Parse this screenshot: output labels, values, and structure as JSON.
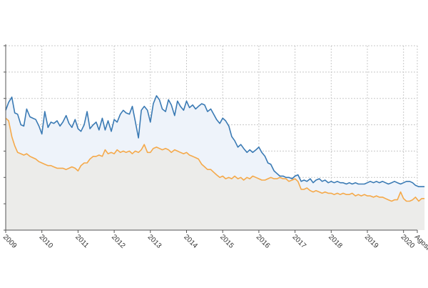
{
  "chart_data": {
    "type": "area",
    "x_start_year": 2009,
    "x_ticks": [
      "2009",
      "2010",
      "2011",
      "2012",
      "2013",
      "2014",
      "2015",
      "2016",
      "2017",
      "2018",
      "2019",
      "2020",
      "Agosto"
    ],
    "ylim": [
      0,
      7
    ],
    "grid": true,
    "series": [
      {
        "color": "#3a7ab4",
        "fill": "#eef3fa",
        "points": [
          [
            2009.0,
            4.55
          ],
          [
            2009.08,
            4.85
          ],
          [
            2009.17,
            5.05
          ],
          [
            2009.25,
            4.45
          ],
          [
            2009.33,
            4.4
          ],
          [
            2009.42,
            4.0
          ],
          [
            2009.5,
            3.95
          ],
          [
            2009.58,
            4.6
          ],
          [
            2009.67,
            4.3
          ],
          [
            2009.75,
            4.25
          ],
          [
            2009.83,
            4.2
          ],
          [
            2009.92,
            3.95
          ],
          [
            2010.0,
            3.65
          ],
          [
            2010.08,
            4.5
          ],
          [
            2010.17,
            3.9
          ],
          [
            2010.25,
            4.1
          ],
          [
            2010.33,
            4.05
          ],
          [
            2010.42,
            4.15
          ],
          [
            2010.5,
            3.95
          ],
          [
            2010.58,
            4.1
          ],
          [
            2010.67,
            4.35
          ],
          [
            2010.75,
            4.05
          ],
          [
            2010.83,
            3.9
          ],
          [
            2010.92,
            4.2
          ],
          [
            2011.0,
            3.85
          ],
          [
            2011.08,
            3.75
          ],
          [
            2011.17,
            4.0
          ],
          [
            2011.25,
            4.5
          ],
          [
            2011.33,
            3.85
          ],
          [
            2011.42,
            4.0
          ],
          [
            2011.5,
            4.1
          ],
          [
            2011.58,
            3.8
          ],
          [
            2011.67,
            4.25
          ],
          [
            2011.75,
            3.8
          ],
          [
            2011.83,
            4.15
          ],
          [
            2011.92,
            3.75
          ],
          [
            2012.0,
            4.2
          ],
          [
            2012.08,
            4.1
          ],
          [
            2012.17,
            4.4
          ],
          [
            2012.25,
            4.55
          ],
          [
            2012.33,
            4.45
          ],
          [
            2012.42,
            4.4
          ],
          [
            2012.5,
            4.7
          ],
          [
            2012.58,
            4.15
          ],
          [
            2012.67,
            3.5
          ],
          [
            2012.75,
            4.55
          ],
          [
            2012.83,
            4.7
          ],
          [
            2012.92,
            4.55
          ],
          [
            2013.0,
            4.1
          ],
          [
            2013.08,
            4.8
          ],
          [
            2013.17,
            5.1
          ],
          [
            2013.25,
            4.95
          ],
          [
            2013.33,
            4.6
          ],
          [
            2013.42,
            4.5
          ],
          [
            2013.5,
            4.95
          ],
          [
            2013.58,
            4.75
          ],
          [
            2013.67,
            4.35
          ],
          [
            2013.75,
            4.9
          ],
          [
            2013.83,
            4.7
          ],
          [
            2013.92,
            4.55
          ],
          [
            2014.0,
            4.9
          ],
          [
            2014.08,
            4.65
          ],
          [
            2014.17,
            4.75
          ],
          [
            2014.25,
            4.6
          ],
          [
            2014.33,
            4.7
          ],
          [
            2014.42,
            4.8
          ],
          [
            2014.5,
            4.75
          ],
          [
            2014.58,
            4.5
          ],
          [
            2014.67,
            4.6
          ],
          [
            2014.75,
            4.4
          ],
          [
            2014.83,
            4.2
          ],
          [
            2014.92,
            4.05
          ],
          [
            2015.0,
            4.25
          ],
          [
            2015.08,
            4.15
          ],
          [
            2015.17,
            3.95
          ],
          [
            2015.25,
            3.55
          ],
          [
            2015.33,
            3.4
          ],
          [
            2015.42,
            3.15
          ],
          [
            2015.5,
            3.25
          ],
          [
            2015.58,
            3.1
          ],
          [
            2015.67,
            2.95
          ],
          [
            2015.75,
            3.05
          ],
          [
            2015.83,
            2.95
          ],
          [
            2015.92,
            3.05
          ],
          [
            2016.0,
            3.15
          ],
          [
            2016.08,
            2.95
          ],
          [
            2016.17,
            2.8
          ],
          [
            2016.25,
            2.55
          ],
          [
            2016.33,
            2.5
          ],
          [
            2016.42,
            2.25
          ],
          [
            2016.5,
            2.15
          ],
          [
            2016.58,
            2.05
          ],
          [
            2016.67,
            2.05
          ],
          [
            2016.75,
            2.0
          ],
          [
            2016.83,
            2.0
          ],
          [
            2016.92,
            1.95
          ],
          [
            2017.0,
            2.05
          ],
          [
            2017.08,
            2.1
          ],
          [
            2017.17,
            1.85
          ],
          [
            2017.25,
            1.9
          ],
          [
            2017.33,
            1.85
          ],
          [
            2017.42,
            1.95
          ],
          [
            2017.5,
            1.8
          ],
          [
            2017.58,
            1.9
          ],
          [
            2017.67,
            1.95
          ],
          [
            2017.75,
            1.85
          ],
          [
            2017.83,
            1.9
          ],
          [
            2017.92,
            1.8
          ],
          [
            2018.0,
            1.85
          ],
          [
            2018.08,
            1.8
          ],
          [
            2018.17,
            1.85
          ],
          [
            2018.25,
            1.8
          ],
          [
            2018.33,
            1.8
          ],
          [
            2018.42,
            1.75
          ],
          [
            2018.5,
            1.8
          ],
          [
            2018.58,
            1.75
          ],
          [
            2018.67,
            1.8
          ],
          [
            2018.75,
            1.75
          ],
          [
            2018.83,
            1.75
          ],
          [
            2018.92,
            1.75
          ],
          [
            2019.0,
            1.8
          ],
          [
            2019.08,
            1.85
          ],
          [
            2019.17,
            1.8
          ],
          [
            2019.25,
            1.85
          ],
          [
            2019.33,
            1.8
          ],
          [
            2019.42,
            1.85
          ],
          [
            2019.5,
            1.8
          ],
          [
            2019.58,
            1.75
          ],
          [
            2019.67,
            1.8
          ],
          [
            2019.75,
            1.85
          ],
          [
            2019.83,
            1.8
          ],
          [
            2019.92,
            1.75
          ],
          [
            2020.0,
            1.8
          ],
          [
            2020.08,
            1.85
          ],
          [
            2020.17,
            1.85
          ],
          [
            2020.25,
            1.8
          ],
          [
            2020.33,
            1.7
          ],
          [
            2020.42,
            1.65
          ],
          [
            2020.5,
            1.65
          ],
          [
            2020.58,
            1.65
          ]
        ]
      },
      {
        "color": "#f5a94a",
        "fill": "#ececea",
        "points": [
          [
            2009.0,
            4.25
          ],
          [
            2009.08,
            4.15
          ],
          [
            2009.17,
            3.55
          ],
          [
            2009.25,
            3.2
          ],
          [
            2009.33,
            2.95
          ],
          [
            2009.42,
            2.9
          ],
          [
            2009.5,
            2.85
          ],
          [
            2009.58,
            2.9
          ],
          [
            2009.67,
            2.8
          ],
          [
            2009.75,
            2.75
          ],
          [
            2009.83,
            2.7
          ],
          [
            2009.92,
            2.6
          ],
          [
            2010.0,
            2.55
          ],
          [
            2010.08,
            2.5
          ],
          [
            2010.17,
            2.45
          ],
          [
            2010.25,
            2.45
          ],
          [
            2010.33,
            2.4
          ],
          [
            2010.42,
            2.35
          ],
          [
            2010.5,
            2.35
          ],
          [
            2010.58,
            2.35
          ],
          [
            2010.67,
            2.3
          ],
          [
            2010.75,
            2.35
          ],
          [
            2010.83,
            2.4
          ],
          [
            2010.92,
            2.35
          ],
          [
            2011.0,
            2.25
          ],
          [
            2011.08,
            2.45
          ],
          [
            2011.17,
            2.55
          ],
          [
            2011.25,
            2.55
          ],
          [
            2011.33,
            2.7
          ],
          [
            2011.42,
            2.8
          ],
          [
            2011.5,
            2.8
          ],
          [
            2011.58,
            2.85
          ],
          [
            2011.67,
            2.8
          ],
          [
            2011.75,
            3.05
          ],
          [
            2011.83,
            2.9
          ],
          [
            2011.92,
            2.95
          ],
          [
            2012.0,
            2.9
          ],
          [
            2012.08,
            3.05
          ],
          [
            2012.17,
            2.95
          ],
          [
            2012.25,
            3.0
          ],
          [
            2012.33,
            2.95
          ],
          [
            2012.42,
            3.0
          ],
          [
            2012.5,
            2.9
          ],
          [
            2012.58,
            3.0
          ],
          [
            2012.67,
            2.95
          ],
          [
            2012.75,
            3.05
          ],
          [
            2012.83,
            3.25
          ],
          [
            2012.92,
            2.95
          ],
          [
            2013.0,
            2.95
          ],
          [
            2013.08,
            3.1
          ],
          [
            2013.17,
            3.15
          ],
          [
            2013.25,
            3.1
          ],
          [
            2013.33,
            3.05
          ],
          [
            2013.42,
            3.1
          ],
          [
            2013.5,
            3.05
          ],
          [
            2013.58,
            2.95
          ],
          [
            2013.67,
            3.05
          ],
          [
            2013.75,
            3.0
          ],
          [
            2013.83,
            2.95
          ],
          [
            2013.92,
            2.9
          ],
          [
            2014.0,
            2.95
          ],
          [
            2014.08,
            2.85
          ],
          [
            2014.17,
            2.8
          ],
          [
            2014.25,
            2.75
          ],
          [
            2014.33,
            2.7
          ],
          [
            2014.42,
            2.5
          ],
          [
            2014.5,
            2.4
          ],
          [
            2014.58,
            2.3
          ],
          [
            2014.67,
            2.3
          ],
          [
            2014.75,
            2.2
          ],
          [
            2014.83,
            2.1
          ],
          [
            2014.92,
            2.0
          ],
          [
            2015.0,
            2.05
          ],
          [
            2015.08,
            1.95
          ],
          [
            2015.17,
            2.0
          ],
          [
            2015.25,
            1.95
          ],
          [
            2015.33,
            2.05
          ],
          [
            2015.42,
            1.95
          ],
          [
            2015.5,
            2.0
          ],
          [
            2015.58,
            1.9
          ],
          [
            2015.67,
            2.0
          ],
          [
            2015.75,
            1.95
          ],
          [
            2015.83,
            2.05
          ],
          [
            2015.92,
            2.0
          ],
          [
            2016.0,
            1.95
          ],
          [
            2016.08,
            1.9
          ],
          [
            2016.17,
            1.9
          ],
          [
            2016.25,
            1.95
          ],
          [
            2016.33,
            2.0
          ],
          [
            2016.42,
            1.95
          ],
          [
            2016.5,
            1.95
          ],
          [
            2016.58,
            2.0
          ],
          [
            2016.67,
            1.95
          ],
          [
            2016.75,
            1.95
          ],
          [
            2016.83,
            1.85
          ],
          [
            2016.92,
            1.9
          ],
          [
            2017.0,
            1.95
          ],
          [
            2017.08,
            1.85
          ],
          [
            2017.17,
            1.55
          ],
          [
            2017.25,
            1.55
          ],
          [
            2017.33,
            1.6
          ],
          [
            2017.42,
            1.5
          ],
          [
            2017.5,
            1.45
          ],
          [
            2017.58,
            1.5
          ],
          [
            2017.67,
            1.45
          ],
          [
            2017.75,
            1.4
          ],
          [
            2017.83,
            1.45
          ],
          [
            2017.92,
            1.4
          ],
          [
            2018.0,
            1.4
          ],
          [
            2018.08,
            1.35
          ],
          [
            2018.17,
            1.4
          ],
          [
            2018.25,
            1.35
          ],
          [
            2018.33,
            1.4
          ],
          [
            2018.42,
            1.35
          ],
          [
            2018.5,
            1.35
          ],
          [
            2018.58,
            1.4
          ],
          [
            2018.67,
            1.3
          ],
          [
            2018.75,
            1.35
          ],
          [
            2018.83,
            1.3
          ],
          [
            2018.92,
            1.35
          ],
          [
            2019.0,
            1.3
          ],
          [
            2019.08,
            1.3
          ],
          [
            2019.17,
            1.25
          ],
          [
            2019.25,
            1.3
          ],
          [
            2019.33,
            1.25
          ],
          [
            2019.42,
            1.25
          ],
          [
            2019.5,
            1.2
          ],
          [
            2019.58,
            1.15
          ],
          [
            2019.67,
            1.1
          ],
          [
            2019.75,
            1.15
          ],
          [
            2019.83,
            1.15
          ],
          [
            2019.92,
            1.45
          ],
          [
            2020.0,
            1.2
          ],
          [
            2020.08,
            1.1
          ],
          [
            2020.17,
            1.1
          ],
          [
            2020.25,
            1.15
          ],
          [
            2020.33,
            1.25
          ],
          [
            2020.42,
            1.1
          ],
          [
            2020.5,
            1.2
          ],
          [
            2020.58,
            1.2
          ]
        ]
      }
    ]
  }
}
